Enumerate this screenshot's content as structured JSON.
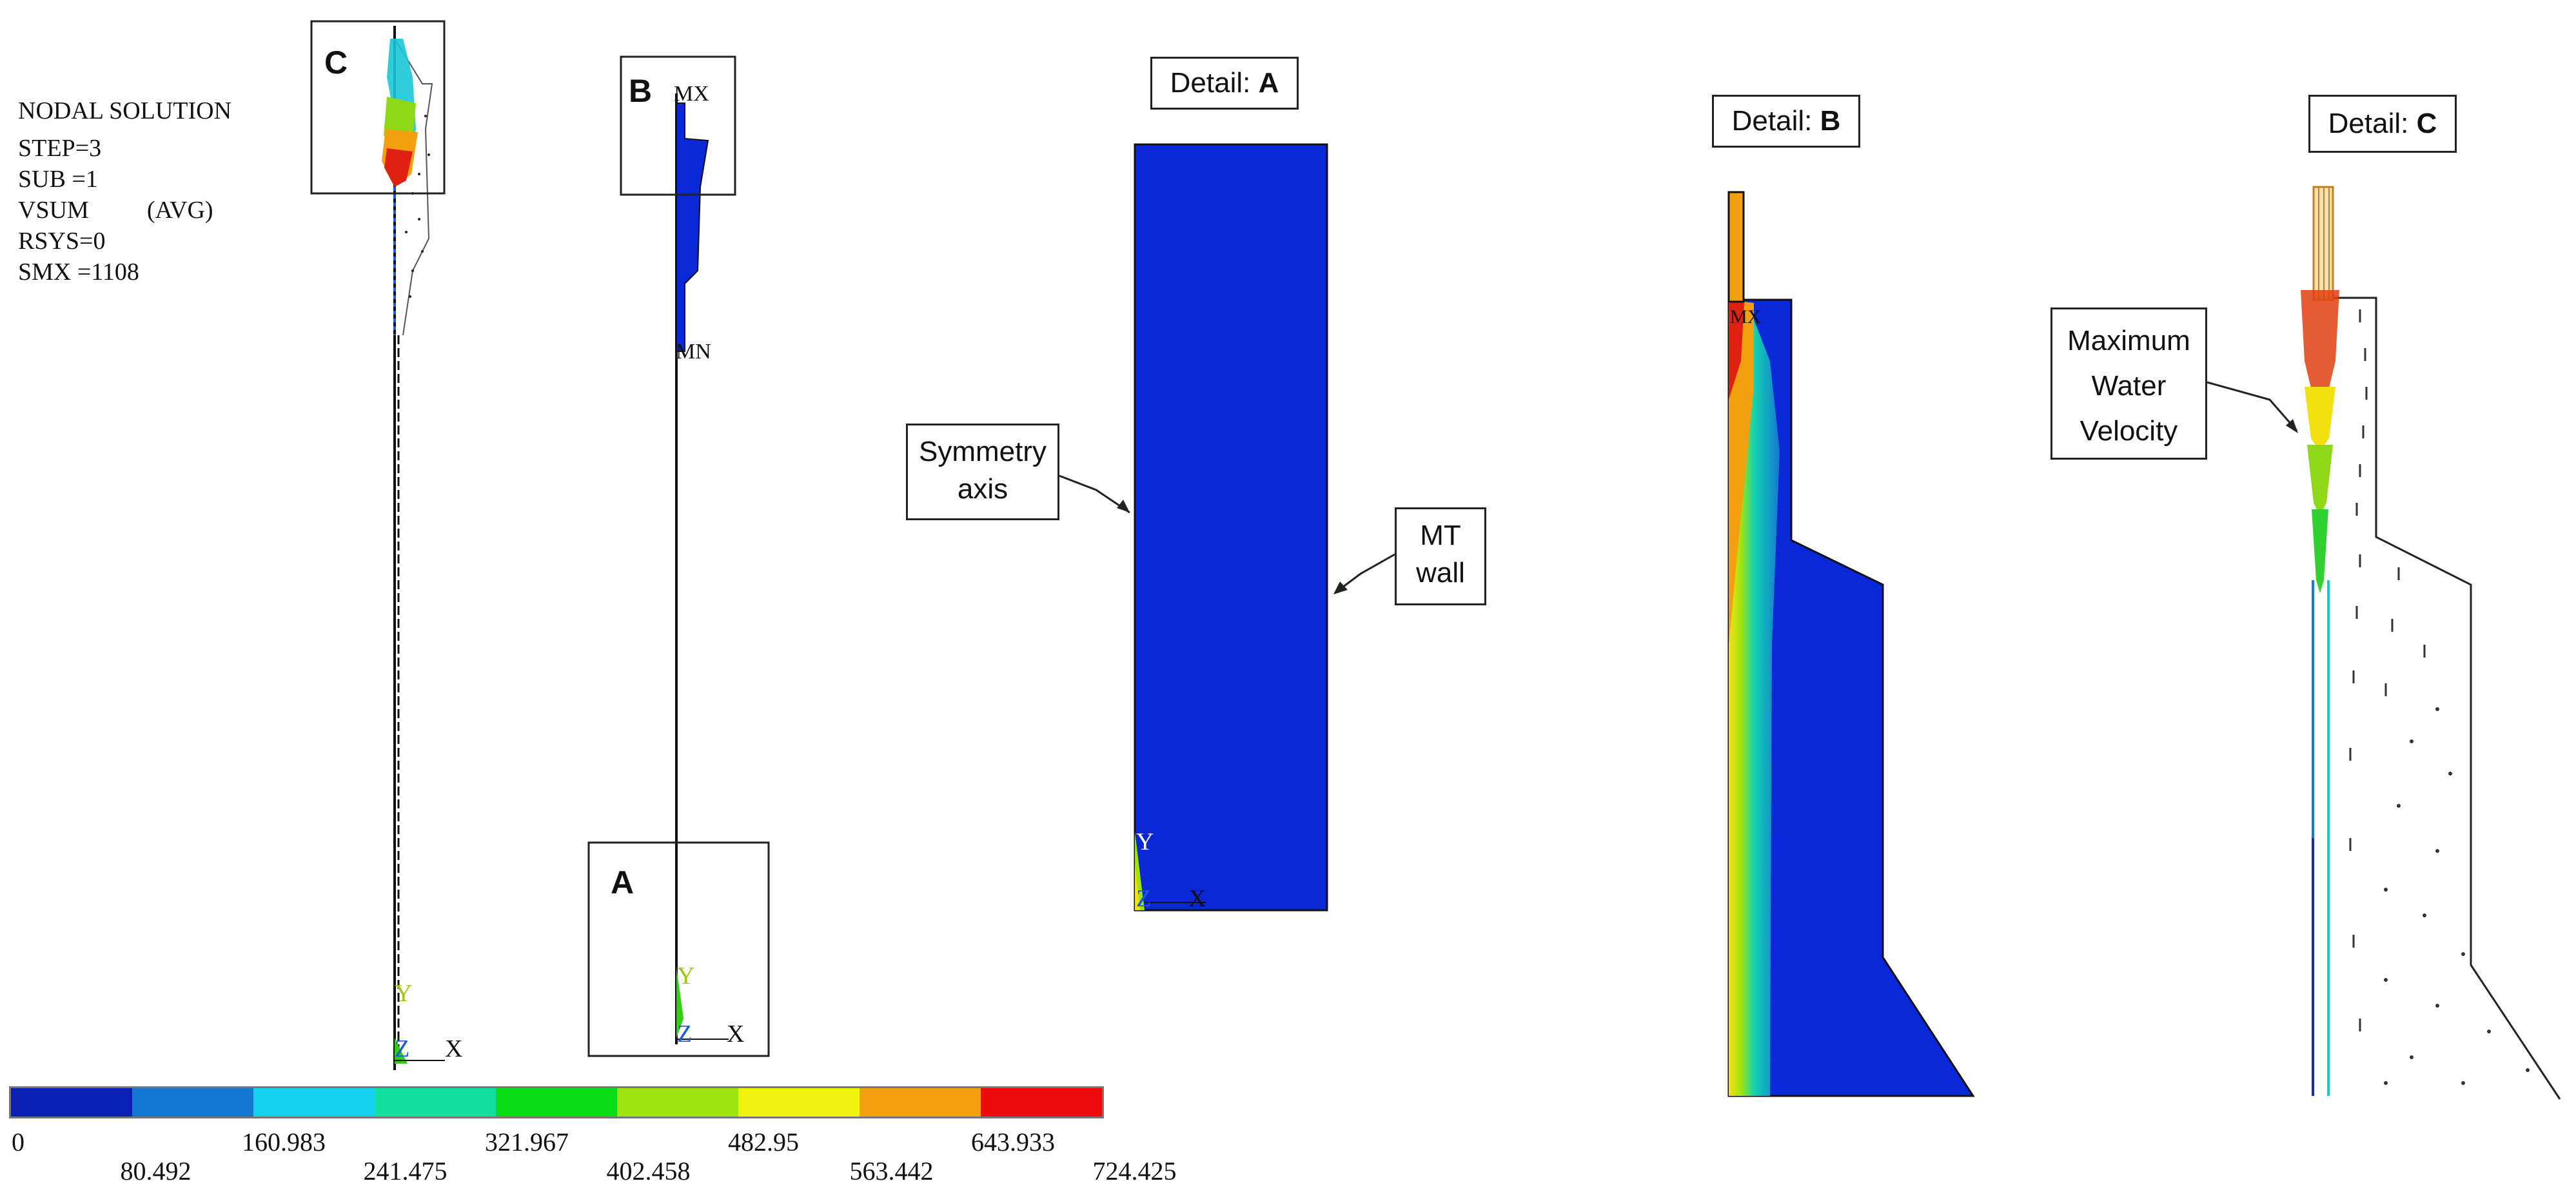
{
  "info": {
    "title": "NODAL SOLUTION",
    "step": "STEP=3",
    "sub": "SUB =1",
    "vsum": "VSUM",
    "avg": "(AVG)",
    "rsys": "RSYS=0",
    "smx": "SMX =1108"
  },
  "views": {
    "box_c": "C",
    "box_b": "B",
    "box_a": "A",
    "mx": "MX",
    "mn": "MN",
    "axis_y": "Y",
    "axis_z": "Z",
    "axis_x": "X"
  },
  "details": {
    "a_prefix": "Detail: ",
    "a_letter": "A",
    "b_prefix": "Detail: ",
    "b_letter": "B",
    "c_prefix": "Detail: ",
    "c_letter": "C",
    "detail_b_mx": "MX"
  },
  "callouts": {
    "symmetry_line1": "Symmetry",
    "symmetry_line2": "axis",
    "mt_line1": "MT",
    "mt_line2": "wall",
    "max_line1": "Maximum",
    "max_line2": "Water",
    "max_line3": "Velocity"
  },
  "legend": {
    "colors": [
      "#0a20b4",
      "#1478d2",
      "#14d2ee",
      "#12e0a0",
      "#0adc16",
      "#9ee410",
      "#f2f210",
      "#f4a010",
      "#ec0a0a"
    ],
    "values": [
      "0",
      "80.492",
      "160.983",
      "241.475",
      "321.967",
      "402.458",
      "482.95",
      "563.442",
      "643.933",
      "724.425"
    ]
  },
  "colors": {
    "field_blue": "#0a28d8",
    "wall_blue": "#0a20b4"
  }
}
